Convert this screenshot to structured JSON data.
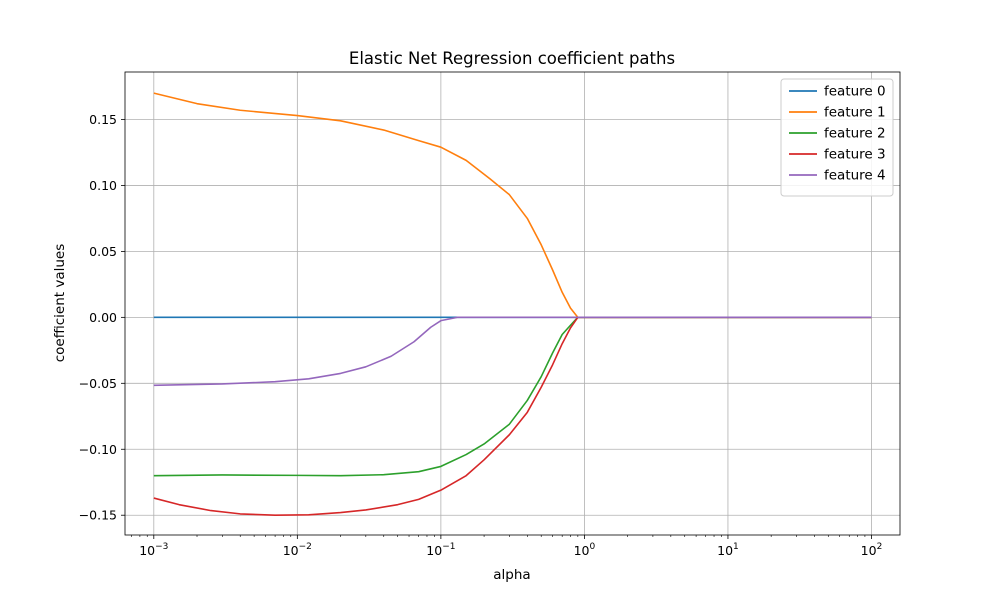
{
  "chart_data": {
    "type": "line",
    "title": "Elastic Net Regression coefficient paths",
    "xlabel": "alpha",
    "ylabel": "coefficient values",
    "xscale": "log",
    "xlim": [
      0.00063,
      158
    ],
    "ylim": [
      -0.165,
      0.186
    ],
    "xticks": [
      {
        "value": 0.001,
        "base": "10",
        "exp": "−3"
      },
      {
        "value": 0.01,
        "base": "10",
        "exp": "−2"
      },
      {
        "value": 0.1,
        "base": "10",
        "exp": "−1"
      },
      {
        "value": 1,
        "base": "10",
        "exp": "0"
      },
      {
        "value": 10,
        "base": "10",
        "exp": "1"
      },
      {
        "value": 100,
        "base": "10",
        "exp": "2"
      }
    ],
    "yticks": [
      {
        "value": 0.15,
        "label": "0.15"
      },
      {
        "value": 0.1,
        "label": "0.10"
      },
      {
        "value": 0.05,
        "label": "0.05"
      },
      {
        "value": 0.0,
        "label": "0.00"
      },
      {
        "value": -0.05,
        "label": "−0.05"
      },
      {
        "value": -0.1,
        "label": "−0.10"
      },
      {
        "value": -0.15,
        "label": "−0.15"
      }
    ],
    "grid": true,
    "legend_position": "top-right",
    "series": [
      {
        "name": "feature 0",
        "color": "#1f77b4",
        "points": [
          [
            0.001,
            0.0
          ],
          [
            100,
            0.0
          ]
        ]
      },
      {
        "name": "feature 1",
        "color": "#ff7f0e",
        "points": [
          [
            0.001,
            0.17
          ],
          [
            0.002,
            0.162
          ],
          [
            0.004,
            0.157
          ],
          [
            0.01,
            0.153
          ],
          [
            0.02,
            0.149
          ],
          [
            0.04,
            0.142
          ],
          [
            0.07,
            0.134
          ],
          [
            0.1,
            0.129
          ],
          [
            0.15,
            0.119
          ],
          [
            0.22,
            0.105
          ],
          [
            0.3,
            0.093
          ],
          [
            0.4,
            0.075
          ],
          [
            0.5,
            0.055
          ],
          [
            0.6,
            0.036
          ],
          [
            0.7,
            0.019
          ],
          [
            0.8,
            0.007
          ],
          [
            0.9,
            0.0
          ],
          [
            100,
            0.0
          ]
        ]
      },
      {
        "name": "feature 2",
        "color": "#2ca02c",
        "points": [
          [
            0.001,
            -0.12
          ],
          [
            0.003,
            -0.1195
          ],
          [
            0.01,
            -0.1198
          ],
          [
            0.02,
            -0.12
          ],
          [
            0.04,
            -0.1193
          ],
          [
            0.07,
            -0.117
          ],
          [
            0.1,
            -0.113
          ],
          [
            0.15,
            -0.104
          ],
          [
            0.2,
            -0.096
          ],
          [
            0.3,
            -0.081
          ],
          [
            0.4,
            -0.063
          ],
          [
            0.5,
            -0.045
          ],
          [
            0.6,
            -0.027
          ],
          [
            0.7,
            -0.013
          ],
          [
            0.8,
            -0.006
          ],
          [
            0.9,
            0.0
          ],
          [
            100,
            0.0
          ]
        ]
      },
      {
        "name": "feature 3",
        "color": "#d62728",
        "points": [
          [
            0.001,
            -0.137
          ],
          [
            0.0015,
            -0.142
          ],
          [
            0.0025,
            -0.1465
          ],
          [
            0.004,
            -0.149
          ],
          [
            0.007,
            -0.15
          ],
          [
            0.012,
            -0.1497
          ],
          [
            0.02,
            -0.148
          ],
          [
            0.03,
            -0.146
          ],
          [
            0.05,
            -0.142
          ],
          [
            0.07,
            -0.138
          ],
          [
            0.1,
            -0.131
          ],
          [
            0.15,
            -0.12
          ],
          [
            0.2,
            -0.108
          ],
          [
            0.3,
            -0.089
          ],
          [
            0.4,
            -0.072
          ],
          [
            0.5,
            -0.053
          ],
          [
            0.6,
            -0.036
          ],
          [
            0.7,
            -0.02
          ],
          [
            0.8,
            -0.008
          ],
          [
            0.9,
            0.0
          ],
          [
            100,
            0.0
          ]
        ]
      },
      {
        "name": "feature 4",
        "color": "#9467bd",
        "points": [
          [
            0.001,
            -0.0515
          ],
          [
            0.003,
            -0.0505
          ],
          [
            0.007,
            -0.0488
          ],
          [
            0.012,
            -0.0466
          ],
          [
            0.02,
            -0.0425
          ],
          [
            0.03,
            -0.0375
          ],
          [
            0.045,
            -0.0295
          ],
          [
            0.065,
            -0.0185
          ],
          [
            0.085,
            -0.0075
          ],
          [
            0.1,
            -0.0025
          ],
          [
            0.13,
            0.0
          ],
          [
            100,
            0.0
          ]
        ]
      }
    ]
  }
}
